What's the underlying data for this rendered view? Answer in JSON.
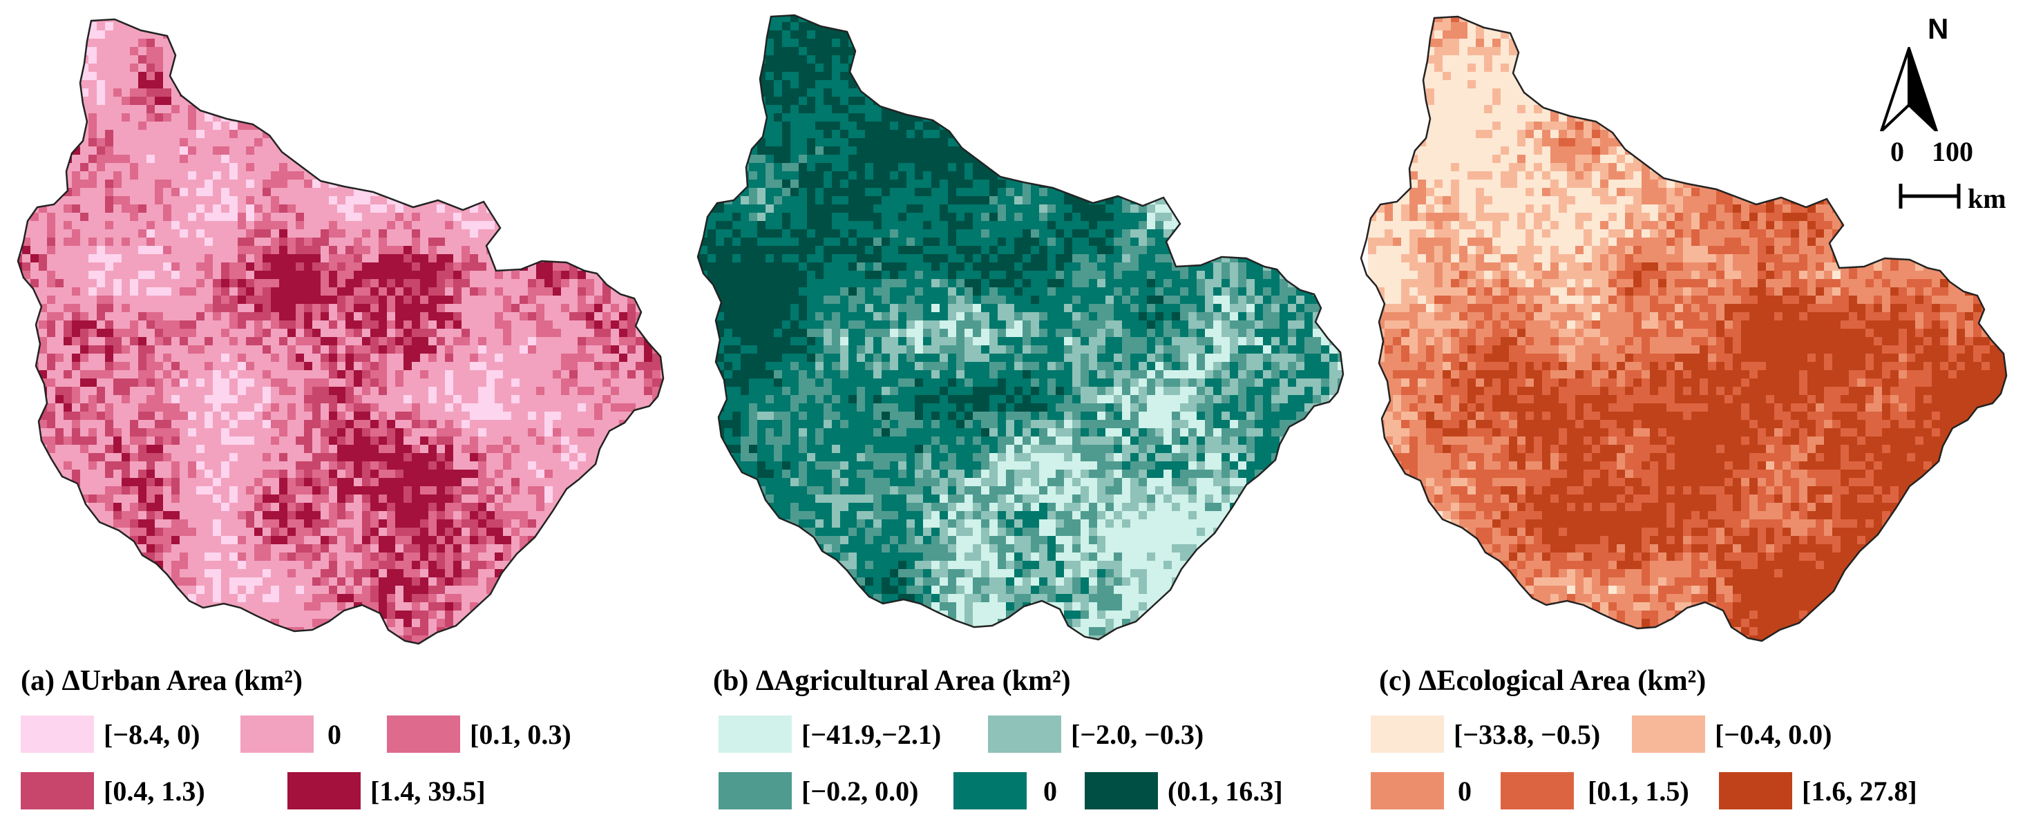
{
  "panels": [
    {
      "id": "urban",
      "title": "(a) ΔUrban Area (km²)",
      "legend": [
        {
          "label": "[−8.4, 0)",
          "color": "#fdd5ee"
        },
        {
          "label": "0",
          "color": "#f2a2be"
        },
        {
          "label": "[0.1, 0.3)",
          "color": "#de6a8d"
        },
        {
          "label": "[0.4, 1.3)",
          "color": "#c8456c"
        },
        {
          "label": "[1.4, 39.5]",
          "color": "#a3113c"
        }
      ]
    },
    {
      "id": "agricultural",
      "title": "(b) ΔAgricultural Area (km²)",
      "legend": [
        {
          "label": "[−41.9,−2.1)",
          "color": "#d0f2ea"
        },
        {
          "label": "[−2.0, −0.3)",
          "color": "#8fc2b9"
        },
        {
          "label": "[−0.2, 0.0)",
          "color": "#4f9b90"
        },
        {
          "label": "0",
          "color": "#00786c"
        },
        {
          "label": "(0.1, 16.3]",
          "color": "#004f44"
        }
      ]
    },
    {
      "id": "ecological",
      "title": "(c)  ΔEcological Area (km²)",
      "legend": [
        {
          "label": "[−33.8, −0.5)",
          "color": "#fde8d4"
        },
        {
          "label": "[−0.4, 0.0)",
          "color": "#f7b89a"
        },
        {
          "label": "0",
          "color": "#ec8e6c"
        },
        {
          "label": "[0.1, 1.5)",
          "color": "#dd6440"
        },
        {
          "label": "[1.6, 27.8]",
          "color": "#c0421a"
        }
      ]
    }
  ],
  "north_label": "N",
  "scale": {
    "zero": "0",
    "hundred": "100",
    "unit": "km"
  }
}
